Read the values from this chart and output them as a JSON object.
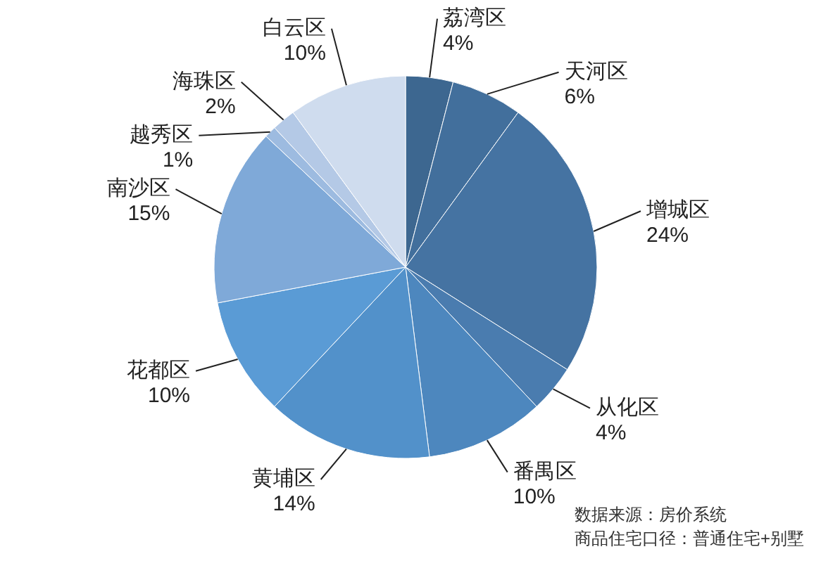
{
  "chart_data": {
    "type": "pie",
    "categories": [
      "荔湾区",
      "天河区",
      "增城区",
      "从化区",
      "番禺区",
      "黄埔区",
      "花都区",
      "南沙区",
      "越秀区",
      "海珠区",
      "白云区"
    ],
    "values": [
      4,
      6,
      24,
      4,
      10,
      14,
      10,
      15,
      1,
      2,
      10
    ],
    "value_labels": [
      "4%",
      "6%",
      "24%",
      "4%",
      "10%",
      "14%",
      "10%",
      "15%",
      "1%",
      "2%",
      "10%"
    ],
    "colors": [
      "#3d6790",
      "#426f9c",
      "#4573a2",
      "#4a7caf",
      "#4d87be",
      "#5291ca",
      "#5a9bd5",
      "#7fa9d8",
      "#9dbbe0",
      "#b4c9e6",
      "#cfdcee"
    ],
    "annotations": [
      "数据来源：房价系统",
      "商品住宅口径：普通住宅+别墅"
    ]
  }
}
